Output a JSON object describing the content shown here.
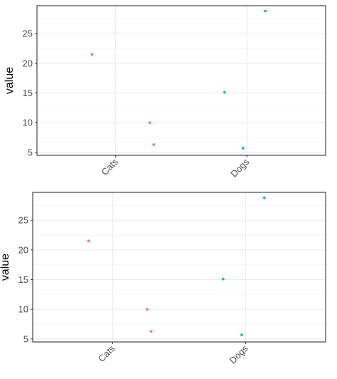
{
  "chart_data": [
    {
      "type": "scatter",
      "title": "",
      "xlabel": "",
      "ylabel": "value",
      "categories": [
        "Cats",
        "Dogs"
      ],
      "ylim": [
        4.5,
        29.7
      ],
      "yticks": [
        5,
        10,
        15,
        20,
        25
      ],
      "grid": true,
      "legend": "none",
      "series": [
        {
          "category": "Cats",
          "color": "#F8766D",
          "points": [
            {
              "x": 0.82,
              "y": 21.5
            },
            {
              "x": 1.26,
              "y": 10.0
            },
            {
              "x": 1.29,
              "y": 6.3
            }
          ]
        },
        {
          "category": "Dogs",
          "color": "#00BFC4",
          "points": [
            {
              "x": 1.83,
              "y": 15.1
            },
            {
              "x": 1.97,
              "y": 5.7
            },
            {
              "x": 2.14,
              "y": 28.8
            }
          ]
        }
      ]
    },
    {
      "type": "scatter",
      "title": "",
      "xlabel": "",
      "ylabel": "value",
      "categories": [
        "Cats",
        "Dogs"
      ],
      "ylim": [
        4.5,
        29.7
      ],
      "yticks": [
        5,
        10,
        15,
        20,
        25
      ],
      "grid": true,
      "legend": "none",
      "series": [
        {
          "category": "Cats",
          "color": "#F8766D",
          "points": [
            {
              "x": 0.82,
              "y": 21.5
            },
            {
              "x": 1.26,
              "y": 10.0
            },
            {
              "x": 1.29,
              "y": 6.3
            }
          ]
        },
        {
          "category": "Dogs",
          "color": "#00BFC4",
          "points": [
            {
              "x": 1.83,
              "y": 15.1
            },
            {
              "x": 1.97,
              "y": 5.7
            },
            {
              "x": 2.14,
              "y": 28.8
            }
          ]
        }
      ]
    }
  ]
}
